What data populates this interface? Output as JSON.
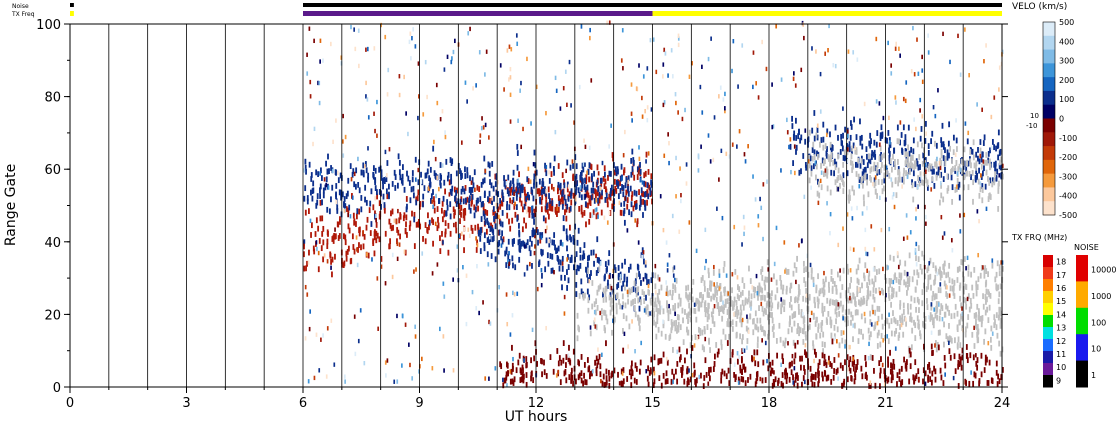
{
  "chart_data": {
    "type": "heatmap",
    "xlabel": "UT hours",
    "ylabel": "Range Gate",
    "xlim": [
      0,
      24
    ],
    "ylim": [
      0,
      100
    ],
    "x_ticks": [
      "0",
      "3",
      "6",
      "9",
      "12",
      "15",
      "18",
      "21",
      "24"
    ],
    "y_ticks": [
      "0",
      "20",
      "40",
      "60",
      "80",
      "100"
    ],
    "status_bars": {
      "noise_label": "Noise",
      "txfreq_label": "TX Freq",
      "noise_segments": [
        {
          "start": 0,
          "end": 0.1,
          "color": "#000000"
        },
        {
          "start": 6,
          "end": 24,
          "color": "#000000"
        }
      ],
      "txfreq_segments": [
        {
          "start": 0,
          "end": 0.1,
          "color": "#ffff00"
        },
        {
          "start": 6,
          "end": 15,
          "color": "#5a1a8a"
        },
        {
          "start": 15,
          "end": 24,
          "color": "#ffff00"
        }
      ]
    },
    "velocity_scale": {
      "title": "VELO (km/s)",
      "ticks": [
        "500",
        "400",
        "300",
        "200",
        "100",
        "0",
        "-100",
        "-200",
        "-300",
        "-400",
        "-500"
      ],
      "side_labels": [
        "10",
        "-10"
      ],
      "colors": [
        "#dcecf8",
        "#b2d6f0",
        "#7fbbe6",
        "#3d95d9",
        "#1565c0",
        "#0b2e8c",
        "#000064",
        "#7a0000",
        "#a01808",
        "#c33a08",
        "#e0660a",
        "#f59a3c",
        "#fcc89c",
        "#fde2cc"
      ]
    },
    "txfreq_scale": {
      "title": "TX FRQ (MHz)",
      "ticks": [
        "18",
        "17",
        "16",
        "15",
        "14",
        "13",
        "12",
        "11",
        "10",
        "9"
      ],
      "colors": [
        "#d80000",
        "#f03a1a",
        "#ff7f00",
        "#ffcf00",
        "#ffff00",
        "#00dd00",
        "#00e0e0",
        "#1a6cff",
        "#1a1aa8",
        "#6a1a9a",
        "#000000"
      ]
    },
    "noise_scale": {
      "title": "NOISE",
      "ticks": [
        "10000",
        "1000",
        "100",
        "10",
        "1"
      ],
      "colors": [
        "#e00000",
        "#ffaa00",
        "#00dd00",
        "#1a1aee",
        "#000000"
      ]
    },
    "series": [
      {
        "band": "cluster",
        "x_range": [
          6,
          15
        ],
        "center_start": 40,
        "center_end": 55,
        "color": "#b01808"
      },
      {
        "band": "cluster",
        "x_range": [
          6,
          15
        ],
        "center_start": 55,
        "center_end": 55,
        "color": "#0b2e8c"
      },
      {
        "band": "cluster",
        "x_range": [
          10.5,
          15
        ],
        "center_start": 42,
        "center_end": 28,
        "color": "#0b2e8c"
      },
      {
        "band": "cluster",
        "x_range": [
          13,
          24
        ],
        "center_start": 22,
        "center_end": 30,
        "color": "#c0c0c0"
      },
      {
        "band": "cluster",
        "x_range": [
          15,
          24
        ],
        "center_start": 18,
        "center_end": 18,
        "color": "#c0c0c0"
      },
      {
        "band": "cluster",
        "x_range": [
          11,
          24
        ],
        "center_start": 2,
        "center_end": 3,
        "color": "#7a0000"
      },
      {
        "band": "cluster",
        "x_range": [
          18.5,
          24
        ],
        "center_start": 66,
        "center_end": 62,
        "color": "#0b2e8c"
      },
      {
        "band": "cluster",
        "x_range": [
          19,
          24
        ],
        "center_start": 60,
        "center_end": 58,
        "color": "#c0c0c0"
      }
    ]
  }
}
